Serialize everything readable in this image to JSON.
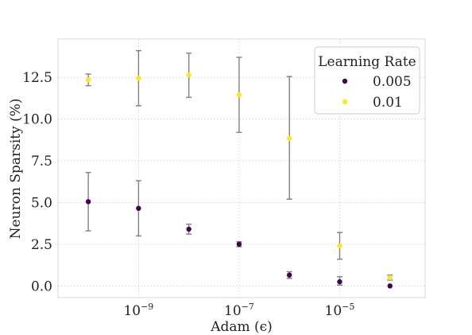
{
  "chart_data": {
    "type": "scatter",
    "title": "",
    "xlabel": "Adam (ϵ)",
    "ylabel": "Neuron Sparsity (%)",
    "x_scale": "log",
    "xlim": [
      2.5e-11,
      0.0005
    ],
    "ylim": [
      -0.7,
      14.8
    ],
    "x_ticks": [
      {
        "value": 1e-09,
        "base": "10",
        "exp": "−9"
      },
      {
        "value": 1e-07,
        "base": "10",
        "exp": "−7"
      },
      {
        "value": 1e-05,
        "base": "10",
        "exp": "−5"
      }
    ],
    "y_ticks": [
      {
        "value": 0.0,
        "label": "0.0"
      },
      {
        "value": 2.5,
        "label": "2.5"
      },
      {
        "value": 5.0,
        "label": "5.0"
      },
      {
        "value": 7.5,
        "label": "7.5"
      },
      {
        "value": 10.0,
        "label": "10.0"
      },
      {
        "value": 12.5,
        "label": "12.5"
      }
    ],
    "grid": true,
    "legend": {
      "title": "Learning Rate",
      "placement": "top-right"
    },
    "series": [
      {
        "name": "0.005",
        "color": "#440154",
        "points": [
          {
            "x": 1e-10,
            "y": 5.05,
            "err_lo": 3.3,
            "err_hi": 6.8
          },
          {
            "x": 1e-09,
            "y": 4.65,
            "err_lo": 3.0,
            "err_hi": 6.3
          },
          {
            "x": 1e-08,
            "y": 3.4,
            "err_lo": 3.1,
            "err_hi": 3.7
          },
          {
            "x": 1e-07,
            "y": 2.5,
            "err_lo": 2.35,
            "err_hi": 2.65
          },
          {
            "x": 1e-06,
            "y": 0.65,
            "err_lo": 0.45,
            "err_hi": 0.85
          },
          {
            "x": 1e-05,
            "y": 0.25,
            "err_lo": 0.05,
            "err_hi": 0.55
          },
          {
            "x": 0.0001,
            "y": 0.0,
            "err_lo": 0.0,
            "err_hi": 0.0
          }
        ]
      },
      {
        "name": "0.01",
        "color": "#fde725",
        "points": [
          {
            "x": 1e-10,
            "y": 12.35,
            "err_lo": 12.0,
            "err_hi": 12.7
          },
          {
            "x": 1e-09,
            "y": 12.45,
            "err_lo": 10.8,
            "err_hi": 14.1
          },
          {
            "x": 1e-08,
            "y": 12.65,
            "err_lo": 11.3,
            "err_hi": 13.95
          },
          {
            "x": 1e-07,
            "y": 11.45,
            "err_lo": 9.2,
            "err_hi": 13.7
          },
          {
            "x": 1e-06,
            "y": 8.85,
            "err_lo": 5.2,
            "err_hi": 12.55
          },
          {
            "x": 1e-05,
            "y": 2.4,
            "err_lo": 1.6,
            "err_hi": 3.2
          },
          {
            "x": 0.0001,
            "y": 0.5,
            "err_lo": 0.35,
            "err_hi": 0.65
          }
        ]
      }
    ]
  }
}
